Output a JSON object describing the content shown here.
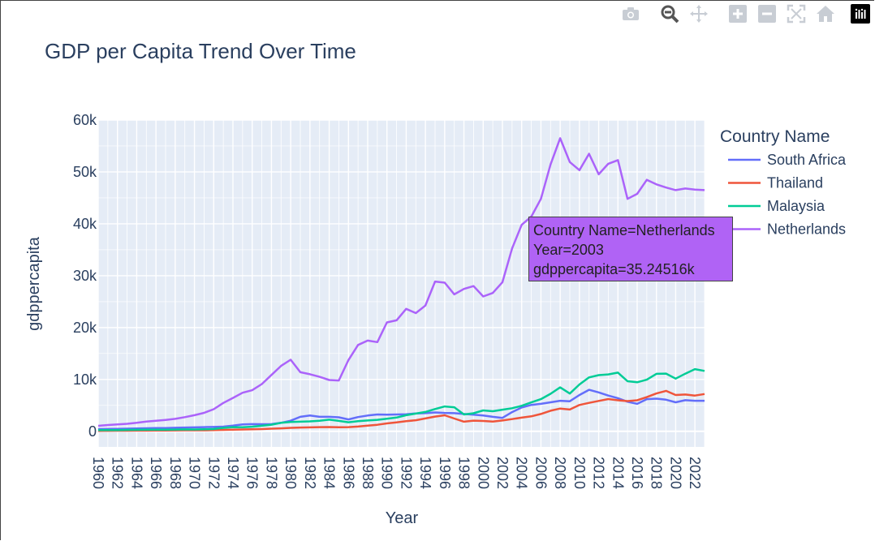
{
  "modebar": {
    "buttons": [
      "camera-icon",
      "zoom-icon",
      "pan-icon",
      "zoom-in-icon",
      "zoom-out-icon",
      "autoscale-icon",
      "home-icon"
    ],
    "logo": "plotly-logo"
  },
  "tooltip": {
    "line1": "Country Name=Netherlands",
    "line2": "Year=2003",
    "line3": "gdppercapita=35.24516k",
    "color": "#b063f5"
  },
  "chart_data": {
    "type": "line",
    "title": "GDP per Capita Trend Over Time",
    "xlabel": "Year",
    "ylabel": "gdppercapita",
    "legend_title": "Country Name",
    "legend_placement": "right",
    "grid": true,
    "xlim": [
      1960,
      2023
    ],
    "ylim": [
      -3000,
      60000
    ],
    "x_ticks": [
      "1960",
      "1962",
      "1964",
      "1966",
      "1968",
      "1970",
      "1972",
      "1974",
      "1976",
      "1978",
      "1980",
      "1982",
      "1984",
      "1986",
      "1988",
      "1990",
      "1992",
      "1994",
      "1996",
      "1998",
      "2000",
      "2002",
      "2004",
      "2006",
      "2008",
      "2010",
      "2012",
      "2014",
      "2016",
      "2018",
      "2020",
      "2022"
    ],
    "y_ticks": [
      {
        "value": 0,
        "label": "0"
      },
      {
        "value": 10000,
        "label": "10k"
      },
      {
        "value": 20000,
        "label": "20k"
      },
      {
        "value": 30000,
        "label": "30k"
      },
      {
        "value": 40000,
        "label": "40k"
      },
      {
        "value": 50000,
        "label": "50k"
      },
      {
        "value": 60000,
        "label": "60k"
      }
    ],
    "x": [
      1960,
      1961,
      1962,
      1963,
      1964,
      1965,
      1966,
      1967,
      1968,
      1969,
      1970,
      1971,
      1972,
      1973,
      1974,
      1975,
      1976,
      1977,
      1978,
      1979,
      1980,
      1981,
      1982,
      1983,
      1984,
      1985,
      1986,
      1987,
      1988,
      1989,
      1990,
      1991,
      1992,
      1993,
      1994,
      1995,
      1996,
      1997,
      1998,
      1999,
      2000,
      2001,
      2002,
      2003,
      2004,
      2005,
      2006,
      2007,
      2008,
      2009,
      2010,
      2011,
      2012,
      2013,
      2014,
      2015,
      2016,
      2017,
      2018,
      2019,
      2020,
      2021,
      2022,
      2023
    ],
    "series": [
      {
        "name": "South Africa",
        "color": "#636efa",
        "values": [
          440,
          460,
          480,
          520,
          560,
          590,
          620,
          650,
          690,
          730,
          770,
          810,
          850,
          910,
          1100,
          1350,
          1400,
          1380,
          1400,
          1650,
          2050,
          2800,
          3050,
          2800,
          2800,
          2700,
          2300,
          2750,
          3050,
          3250,
          3200,
          3250,
          3300,
          3450,
          3500,
          3650,
          3550,
          3500,
          3350,
          3200,
          3050,
          2800,
          2600,
          3700,
          4600,
          5100,
          5300,
          5600,
          5900,
          5800,
          7000,
          8000,
          7500,
          6900,
          6400,
          5700,
          5300,
          6200,
          6300,
          6100,
          5600,
          6000,
          5900,
          5900
        ]
      },
      {
        "name": "Thailand",
        "color": "#ef553b",
        "values": [
          100,
          110,
          120,
          130,
          140,
          150,
          170,
          180,
          190,
          200,
          210,
          210,
          230,
          280,
          330,
          360,
          400,
          440,
          510,
          580,
          680,
          730,
          760,
          810,
          830,
          780,
          820,
          920,
          1100,
          1270,
          1530,
          1740,
          1950,
          2140,
          2480,
          2850,
          3100,
          2470,
          1860,
          2060,
          2010,
          1890,
          2100,
          2360,
          2640,
          2890,
          3350,
          3970,
          4390,
          4210,
          5080,
          5490,
          5860,
          6230,
          5990,
          5840,
          5990,
          6600,
          7300,
          7810,
          7000,
          7100,
          6900,
          7200
        ]
      },
      {
        "name": "Malaysia",
        "color": "#00cc96",
        "values": [
          230,
          240,
          240,
          290,
          300,
          320,
          330,
          330,
          340,
          370,
          360,
          390,
          450,
          670,
          810,
          800,
          890,
          1080,
          1290,
          1650,
          1800,
          1860,
          1920,
          2050,
          2250,
          2020,
          1750,
          1950,
          2090,
          2220,
          2440,
          2660,
          3110,
          3430,
          3730,
          4300,
          4800,
          4640,
          3260,
          3490,
          4040,
          3880,
          4170,
          4460,
          4930,
          5590,
          6210,
          7240,
          8480,
          7290,
          9040,
          10400,
          10840,
          10970,
          11320,
          9660,
          9460,
          9960,
          11080,
          11130,
          10160,
          11110,
          11990,
          11650
        ]
      },
      {
        "name": "Netherlands",
        "color": "#ab63fa",
        "values": [
          1070,
          1220,
          1330,
          1450,
          1650,
          1870,
          2030,
          2210,
          2410,
          2730,
          3110,
          3560,
          4270,
          5480,
          6440,
          7440,
          7930,
          9120,
          10860,
          12620,
          13800,
          11400,
          11000,
          10500,
          9900,
          9800,
          13750,
          16650,
          17500,
          17200,
          20990,
          21400,
          23600,
          22800,
          24250,
          28880,
          28650,
          26400,
          27450,
          28000,
          26000,
          26670,
          28750,
          35250,
          39800,
          41400,
          44800,
          51450,
          56500,
          51900,
          50340,
          53500,
          49540,
          51580,
          52270,
          44800,
          45770,
          48480,
          47600,
          47000,
          46500,
          46800,
          46600,
          46500
        ]
      }
    ]
  }
}
